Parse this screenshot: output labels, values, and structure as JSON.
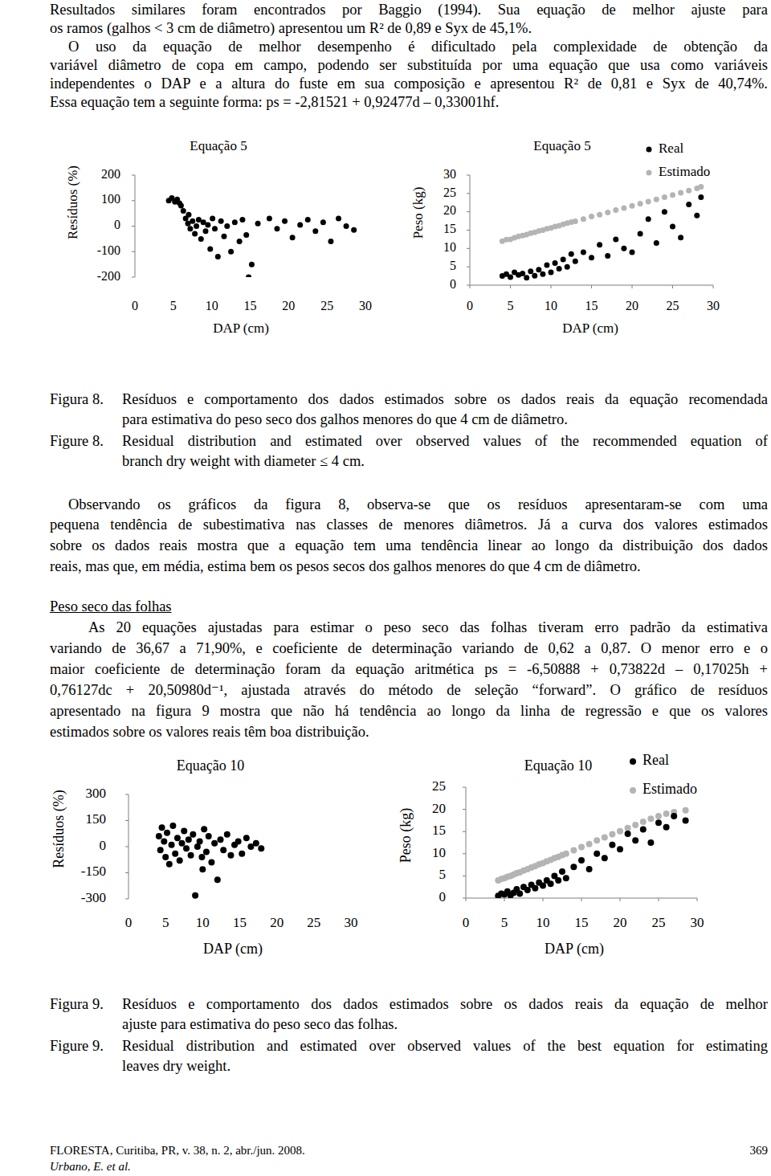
{
  "document": {
    "paragraph_1": [
      "Resultados similares foram encontrados por Baggio (1994). Sua equação de melhor ajuste para",
      "os ramos (galhos < 3 cm de diâmetro) apresentou um R² de 0,89 e Syx de 45,1%."
    ],
    "paragraph_2": [
      "O uso da equação de melhor desempenho é dificultado pela complexidade de obtenção da",
      "variável diâmetro de copa em campo, podendo ser substituída por uma equação que usa como variáveis",
      "independentes o DAP e a altura do fuste em sua composição e apresentou R² de 0,81 e Syx de 40,74%.",
      "Essa equação tem a seguinte forma: ps = -2,81521 + 0,92477d – 0,33001hf."
    ],
    "figure_8_caption": {
      "pt_label": "Figura 8.",
      "pt_lines": [
        "Resíduos e comportamento dos dados estimados sobre os dados reais da equação recomendada",
        "para estimativa do peso seco dos galhos menores do que 4 cm de diâmetro."
      ],
      "en_label": "Figure 8.",
      "en_lines": [
        "Residual distribution and estimated over observed values of the recommended equation of",
        "branch dry weight with diameter ≤ 4 cm."
      ]
    },
    "paragraph_3": [
      "Observando os gráficos da figura 8, observa-se que os resíduos apresentaram-se com uma",
      "pequena tendência de subestimativa nas classes de menores diâmetros. Já a curva dos valores estimados",
      "sobre os dados reais mostra que a equação tem uma tendência linear ao longo da distribuição dos dados",
      "reais, mas que, em média, estima bem os pesos secos dos galhos menores do que 4 cm de diâmetro."
    ],
    "heading": "Peso seco das folhas",
    "paragraph_4": [
      "As 20 equações ajustadas para estimar o peso seco das folhas tiveram erro padrão da estimativa",
      "variando de 36,67 a 71,90%, e coeficiente de determinação variando de 0,62 a 0,87. O menor erro e o",
      "maior coeficiente de determinação foram da equação aritmética ps = -6,50888 + 0,73822d – 0,17025h +",
      "0,76127dc + 20,50980d⁻¹, ajustada através do método de seleção “forward”. O gráfico de resíduos",
      "apresentado na figura 9 mostra que não há tendência ao longo da linha de regressão e que os valores",
      "estimados sobre os valores reais têm boa distribuição."
    ],
    "figure_9_caption": {
      "pt_label": "Figura 9.",
      "pt_lines": [
        "Resíduos e comportamento dos dados estimados sobre os dados reais da equação de melhor",
        "ajuste para estimativa do peso seco das folhas."
      ],
      "en_label": "Figure 9.",
      "en_lines": [
        "Residual distribution and estimated over observed values of the best equation for estimating",
        "leaves dry weight."
      ]
    },
    "footer": {
      "journal": "FLORESTA, Curitiba, PR, v. 38, n. 2, abr./jun. 2008.",
      "page": "369",
      "authors": "Urbano, E. et al."
    }
  },
  "chart_data": [
    {
      "type": "scatter",
      "title": "Equação 5",
      "x_label": "DAP (cm)",
      "y_label": "Resíduos (%)",
      "x": [
        4.4,
        4.8,
        5.2,
        5.5,
        5.8,
        6.0,
        6.3,
        6.6,
        6.9,
        7.2,
        7.0,
        7.5,
        7.8,
        8.0,
        8.3,
        8.6,
        8.9,
        9.2,
        9.5,
        9.8,
        10.1,
        10.4,
        10.8,
        11.2,
        11.6,
        12.0,
        12.5,
        13.0,
        13.6,
        14.0,
        14.5,
        14.8,
        15.2,
        16.0,
        17.5,
        18.5,
        19.5,
        20.5,
        21.5,
        22.5,
        23.5,
        24.5,
        25.5,
        26.5,
        27.5,
        28.5
      ],
      "values": [
        100,
        110,
        95,
        105,
        90,
        80,
        60,
        30,
        10,
        -10,
        45,
        20,
        -30,
        0,
        25,
        -50,
        15,
        -20,
        5,
        -90,
        30,
        -10,
        -120,
        20,
        -40,
        0,
        -100,
        15,
        -60,
        25,
        -35,
        -200,
        -150,
        10,
        30,
        -10,
        20,
        -45,
        5,
        25,
        -20,
        15,
        -60,
        30,
        0,
        -15
      ],
      "color": "#000000",
      "marker": "circle",
      "xlim": [
        0,
        30
      ],
      "xticks": [
        0,
        5,
        10,
        15,
        20,
        25,
        30
      ],
      "ylim": [
        -200,
        200
      ],
      "yticks": [
        200,
        100,
        0,
        -100,
        -200
      ],
      "grid": false
    },
    {
      "type": "scatter",
      "title": "Equação 5",
      "x_label": "DAP (cm)",
      "y_label": "Peso (kg)",
      "x": [
        4.0,
        4.5,
        5.0,
        5.5,
        6.0,
        6.5,
        7.0,
        7.5,
        8.0,
        8.5,
        9.0,
        9.5,
        10,
        10.5,
        11,
        11.5,
        12,
        12.5,
        13,
        14,
        15,
        16,
        17,
        18,
        19,
        20,
        21,
        22,
        23,
        24,
        25,
        26,
        27,
        28,
        28.5
      ],
      "series": [
        {
          "name": "Real",
          "color": "#000000",
          "marker": "circle",
          "values": [
            2.5,
            3.0,
            2.2,
            3.5,
            2.8,
            3.2,
            2.0,
            3.8,
            2.6,
            4.2,
            3.0,
            5.5,
            3.5,
            6.0,
            4.5,
            7.0,
            5.0,
            8.5,
            6.5,
            9.0,
            7.5,
            11.0,
            8.0,
            12.5,
            10.0,
            9.0,
            14.0,
            18.0,
            11.5,
            20.0,
            16.0,
            13.0,
            22.0,
            19.0,
            24.0
          ]
        },
        {
          "name": "Estimado",
          "color": "#b4b4b4",
          "marker": "circle",
          "values": [
            12.0,
            12.4,
            12.5,
            12.9,
            13.3,
            13.5,
            13.8,
            14.2,
            14.4,
            14.8,
            15.0,
            15.4,
            15.6,
            16.0,
            16.2,
            16.6,
            16.9,
            17.2,
            17.4,
            18.0,
            18.7,
            19.2,
            19.8,
            20.5,
            21.0,
            21.6,
            22.2,
            22.8,
            23.4,
            24.0,
            24.6,
            25.2,
            25.8,
            26.4,
            26.8
          ]
        }
      ],
      "xlim": [
        0,
        30
      ],
      "xticks": [
        0,
        5,
        10,
        15,
        20,
        25,
        30
      ],
      "ylim": [
        0,
        30
      ],
      "yticks": [
        30,
        25,
        20,
        15,
        10,
        5,
        0
      ],
      "grid": false,
      "legend": "top-right"
    },
    {
      "type": "scatter",
      "title": "Equação 10",
      "x_label": "DAP (cm)",
      "y_label": "Resíduos (%)",
      "x": [
        4.1,
        4.3,
        4.5,
        4.8,
        5.0,
        5.2,
        5.5,
        5.8,
        6.0,
        6.3,
        6.6,
        6.9,
        7.2,
        7.5,
        7.8,
        8.1,
        8.4,
        8.7,
        9.0,
        9.3,
        9.6,
        9.9,
        10.2,
        10.5,
        10.8,
        11.2,
        11.6,
        12.0,
        12.4,
        12.8,
        13.3,
        13.8,
        14.3,
        14.8,
        15.3,
        15.9,
        16.5,
        17.2,
        17.9,
        10.0
      ],
      "values": [
        60,
        -20,
        110,
        30,
        -60,
        80,
        -100,
        10,
        120,
        -40,
        50,
        -80,
        20,
        90,
        -10,
        40,
        -50,
        70,
        -280,
        0,
        30,
        -60,
        100,
        -30,
        60,
        -90,
        20,
        -190,
        40,
        -20,
        70,
        -50,
        10,
        30,
        -40,
        50,
        0,
        20,
        -10,
        -130
      ],
      "color": "#000000",
      "marker": "circle",
      "xlim": [
        0,
        30
      ],
      "xticks": [
        0,
        5,
        10,
        15,
        20,
        25,
        30
      ],
      "ylim": [
        -300,
        300
      ],
      "yticks": [
        300,
        150,
        0,
        -150,
        -300
      ],
      "grid": false
    },
    {
      "type": "scatter",
      "title": "Equação 10",
      "x_label": "DAP (cm)",
      "y_label": "Peso (kg)",
      "x": [
        4.2,
        4.6,
        5.0,
        5.4,
        5.8,
        6.2,
        6.6,
        7.0,
        7.5,
        8.0,
        8.5,
        9.0,
        9.5,
        10,
        10.5,
        11,
        11.5,
        12,
        12.5,
        13,
        14,
        15,
        16,
        17,
        18,
        19,
        20,
        21,
        22,
        23,
        24,
        25,
        26,
        27,
        28.5
      ],
      "series": [
        {
          "name": "Real",
          "color": "#000000",
          "marker": "circle",
          "values": [
            0.5,
            1.0,
            0.8,
            1.5,
            0.6,
            1.2,
            2.0,
            1.0,
            2.5,
            1.8,
            3.0,
            2.2,
            3.5,
            2.8,
            4.0,
            3.2,
            5.0,
            4.0,
            6.0,
            4.5,
            7.0,
            8.5,
            6.5,
            10.0,
            9.0,
            12.0,
            11.0,
            14.5,
            13.0,
            15.5,
            12.5,
            17.0,
            16.0,
            18.5,
            17.5
          ]
        },
        {
          "name": "Estimado",
          "color": "#b4b4b4",
          "marker": "circle",
          "values": [
            4.0,
            4.3,
            4.5,
            4.8,
            5.0,
            5.3,
            5.6,
            5.8,
            6.2,
            6.5,
            6.9,
            7.2,
            7.6,
            7.9,
            8.3,
            8.6,
            9.0,
            9.3,
            9.7,
            10.0,
            10.8,
            11.5,
            12.2,
            13.0,
            13.7,
            14.4,
            15.1,
            15.8,
            16.5,
            17.2,
            17.9,
            18.5,
            19.0,
            19.4,
            19.8
          ]
        }
      ],
      "xlim": [
        0,
        30
      ],
      "xticks": [
        0,
        5,
        10,
        15,
        20,
        25,
        30
      ],
      "ylim": [
        0,
        25
      ],
      "yticks": [
        25,
        20,
        15,
        10,
        5,
        0
      ],
      "grid": false,
      "legend": "top-right"
    }
  ]
}
